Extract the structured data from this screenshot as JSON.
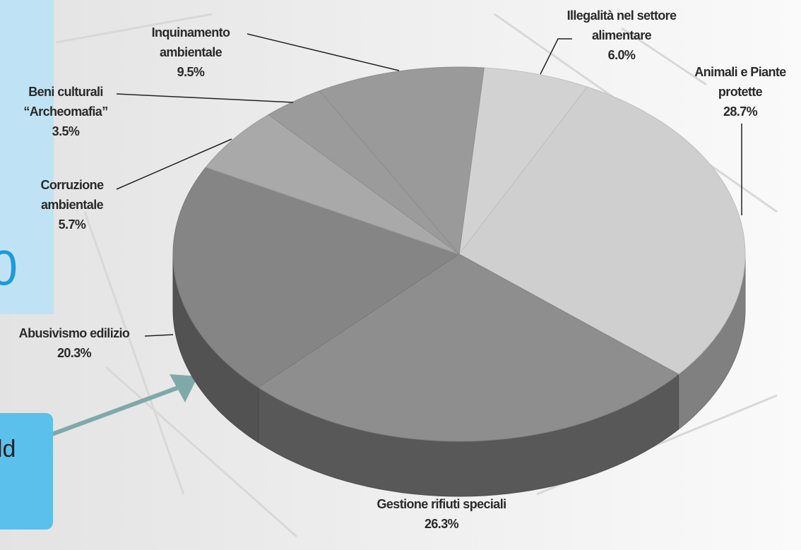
{
  "chart_data": {
    "type": "pie3d",
    "categories": [
      "Illegalità nel settore alimentare",
      "Animali e Piante protette",
      "Gestione rifiuti speciali",
      "Abusivismo edilizio",
      "Corruzione ambientale",
      "Beni culturali “Archeomafia”",
      "Inquinamento ambientale"
    ],
    "values": [
      6.0,
      28.7,
      26.3,
      20.3,
      5.7,
      3.5,
      9.5
    ],
    "value_labels": [
      "6.0%",
      "28.7%",
      "26.3%",
      "20.3%",
      "5.7%",
      "3.5%",
      "9.5%"
    ],
    "colors": [
      "#d2d2d2",
      "#cfcfcf",
      "#8e8e8e",
      "#858585",
      "#a9a9a9",
      "#9b9b9b",
      "#9a9a9a"
    ]
  },
  "background_fragments": [
    "0",
    "ld"
  ]
}
